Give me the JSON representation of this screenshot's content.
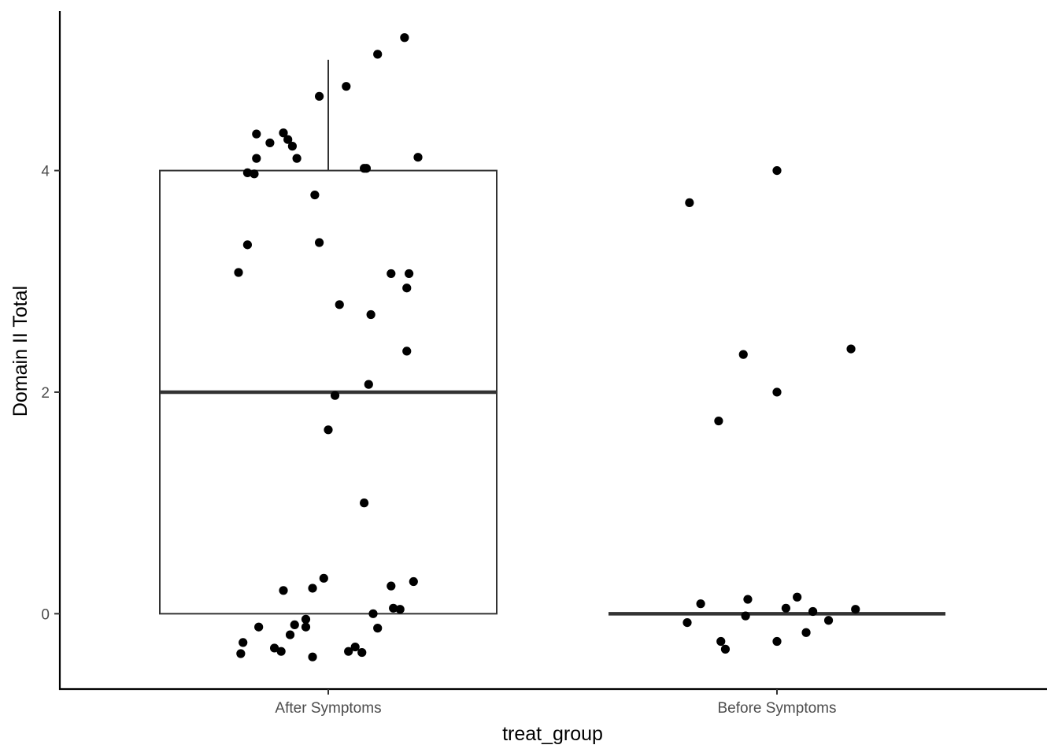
{
  "chart_data": {
    "type": "box",
    "title": "",
    "xlabel": "treat_group",
    "ylabel": "Domain II Total",
    "categories": [
      "After Symptoms",
      "Before Symptoms"
    ],
    "ylim": [
      -0.68,
      5.44
    ],
    "yticks": [
      0,
      2,
      4
    ],
    "grid": false,
    "boxes": [
      {
        "category": "After Symptoms",
        "min": 0,
        "q1": 0,
        "median": 2,
        "q3": 4,
        "max": 5
      },
      {
        "category": "Before Symptoms",
        "min": 0,
        "q1": 0,
        "median": 0,
        "q3": 0,
        "max": 0
      }
    ],
    "points": [
      {
        "category": "After Symptoms",
        "jitter": 0.17,
        "y": 5.2
      },
      {
        "category": "After Symptoms",
        "jitter": 0.11,
        "y": 5.05
      },
      {
        "category": "After Symptoms",
        "jitter": 0.04,
        "y": 4.76
      },
      {
        "category": "After Symptoms",
        "jitter": -0.02,
        "y": 4.67
      },
      {
        "category": "After Symptoms",
        "jitter": -0.1,
        "y": 4.34
      },
      {
        "category": "After Symptoms",
        "jitter": -0.16,
        "y": 4.33
      },
      {
        "category": "After Symptoms",
        "jitter": -0.09,
        "y": 4.28
      },
      {
        "category": "After Symptoms",
        "jitter": -0.13,
        "y": 4.25
      },
      {
        "category": "After Symptoms",
        "jitter": -0.08,
        "y": 4.22
      },
      {
        "category": "After Symptoms",
        "jitter": -0.16,
        "y": 4.11
      },
      {
        "category": "After Symptoms",
        "jitter": -0.07,
        "y": 4.11
      },
      {
        "category": "After Symptoms",
        "jitter": 0.2,
        "y": 4.12
      },
      {
        "category": "After Symptoms",
        "jitter": 0.08,
        "y": 4.02
      },
      {
        "category": "After Symptoms",
        "jitter": 0.085,
        "y": 4.02
      },
      {
        "category": "After Symptoms",
        "jitter": -0.18,
        "y": 3.98
      },
      {
        "category": "After Symptoms",
        "jitter": -0.165,
        "y": 3.97
      },
      {
        "category": "After Symptoms",
        "jitter": -0.03,
        "y": 3.78
      },
      {
        "category": "After Symptoms",
        "jitter": -0.18,
        "y": 3.33
      },
      {
        "category": "After Symptoms",
        "jitter": -0.02,
        "y": 3.35
      },
      {
        "category": "After Symptoms",
        "jitter": -0.2,
        "y": 3.08
      },
      {
        "category": "After Symptoms",
        "jitter": 0.14,
        "y": 3.07
      },
      {
        "category": "After Symptoms",
        "jitter": 0.18,
        "y": 3.07
      },
      {
        "category": "After Symptoms",
        "jitter": 0.175,
        "y": 2.94
      },
      {
        "category": "After Symptoms",
        "jitter": 0.025,
        "y": 2.79
      },
      {
        "category": "After Symptoms",
        "jitter": 0.095,
        "y": 2.7
      },
      {
        "category": "After Symptoms",
        "jitter": 0.175,
        "y": 2.37
      },
      {
        "category": "After Symptoms",
        "jitter": 0.09,
        "y": 2.07
      },
      {
        "category": "After Symptoms",
        "jitter": 0.015,
        "y": 1.97
      },
      {
        "category": "After Symptoms",
        "jitter": 0.0,
        "y": 1.66
      },
      {
        "category": "After Symptoms",
        "jitter": 0.08,
        "y": 1.0
      },
      {
        "category": "After Symptoms",
        "jitter": -0.01,
        "y": 0.32
      },
      {
        "category": "After Symptoms",
        "jitter": 0.19,
        "y": 0.29
      },
      {
        "category": "After Symptoms",
        "jitter": 0.14,
        "y": 0.25
      },
      {
        "category": "After Symptoms",
        "jitter": -0.035,
        "y": 0.23
      },
      {
        "category": "After Symptoms",
        "jitter": -0.1,
        "y": 0.21
      },
      {
        "category": "After Symptoms",
        "jitter": 0.145,
        "y": 0.05
      },
      {
        "category": "After Symptoms",
        "jitter": 0.16,
        "y": 0.04
      },
      {
        "category": "After Symptoms",
        "jitter": 0.1,
        "y": 0.0
      },
      {
        "category": "After Symptoms",
        "jitter": -0.05,
        "y": -0.05
      },
      {
        "category": "After Symptoms",
        "jitter": -0.075,
        "y": -0.1
      },
      {
        "category": "After Symptoms",
        "jitter": -0.155,
        "y": -0.12
      },
      {
        "category": "After Symptoms",
        "jitter": -0.05,
        "y": -0.12
      },
      {
        "category": "After Symptoms",
        "jitter": 0.11,
        "y": -0.13
      },
      {
        "category": "After Symptoms",
        "jitter": -0.085,
        "y": -0.19
      },
      {
        "category": "After Symptoms",
        "jitter": -0.19,
        "y": -0.26
      },
      {
        "category": "After Symptoms",
        "jitter": -0.12,
        "y": -0.31
      },
      {
        "category": "After Symptoms",
        "jitter": 0.06,
        "y": -0.3
      },
      {
        "category": "After Symptoms",
        "jitter": -0.105,
        "y": -0.34
      },
      {
        "category": "After Symptoms",
        "jitter": 0.045,
        "y": -0.34
      },
      {
        "category": "After Symptoms",
        "jitter": -0.195,
        "y": -0.36
      },
      {
        "category": "After Symptoms",
        "jitter": 0.075,
        "y": -0.35
      },
      {
        "category": "After Symptoms",
        "jitter": -0.035,
        "y": -0.39
      },
      {
        "category": "Before Symptoms",
        "jitter": 0.0,
        "y": 4.0
      },
      {
        "category": "Before Symptoms",
        "jitter": -0.195,
        "y": 3.71
      },
      {
        "category": "Before Symptoms",
        "jitter": 0.165,
        "y": 2.39
      },
      {
        "category": "Before Symptoms",
        "jitter": -0.075,
        "y": 2.34
      },
      {
        "category": "Before Symptoms",
        "jitter": 0.0,
        "y": 2.0
      },
      {
        "category": "Before Symptoms",
        "jitter": -0.13,
        "y": 1.74
      },
      {
        "category": "Before Symptoms",
        "jitter": 0.045,
        "y": 0.15
      },
      {
        "category": "Before Symptoms",
        "jitter": -0.065,
        "y": 0.13
      },
      {
        "category": "Before Symptoms",
        "jitter": -0.17,
        "y": 0.09
      },
      {
        "category": "Before Symptoms",
        "jitter": 0.02,
        "y": 0.05
      },
      {
        "category": "Before Symptoms",
        "jitter": 0.175,
        "y": 0.04
      },
      {
        "category": "Before Symptoms",
        "jitter": 0.08,
        "y": 0.02
      },
      {
        "category": "Before Symptoms",
        "jitter": -0.07,
        "y": -0.02
      },
      {
        "category": "Before Symptoms",
        "jitter": 0.115,
        "y": -0.06
      },
      {
        "category": "Before Symptoms",
        "jitter": -0.2,
        "y": -0.08
      },
      {
        "category": "Before Symptoms",
        "jitter": 0.065,
        "y": -0.17
      },
      {
        "category": "Before Symptoms",
        "jitter": -0.125,
        "y": -0.25
      },
      {
        "category": "Before Symptoms",
        "jitter": 0.0,
        "y": -0.25
      },
      {
        "category": "Before Symptoms",
        "jitter": -0.115,
        "y": -0.32
      }
    ]
  }
}
